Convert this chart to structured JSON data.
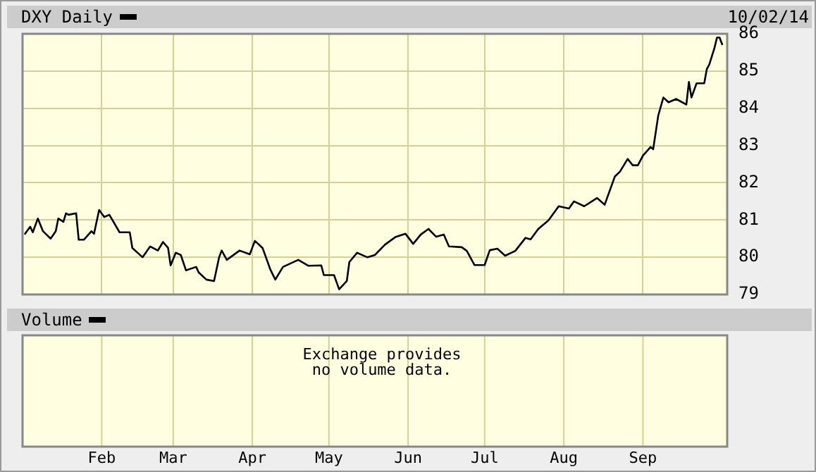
{
  "chart_data": [
    {
      "type": "line",
      "annotations": [
        "10/02/14"
      ],
      "legend": "top left",
      "grid": true,
      "tick_labels": "y",
      "marker": "none",
      "line_style": "solid",
      "xlim": [
        "--01-01",
        "--10-04"
      ],
      "ylim": [
        79,
        86
      ],
      "yticks": [
        79,
        80,
        81,
        82,
        83,
        84,
        85,
        86
      ],
      "xticks": [
        {
          "value": "--02-01",
          "label": "Feb"
        },
        {
          "value": "--03-01",
          "label": "Mar"
        },
        {
          "value": "--04-01",
          "label": "Apr"
        },
        {
          "value": "--05-01",
          "label": "May"
        },
        {
          "value": "--06-01",
          "label": "Jun"
        },
        {
          "value": "--07-01",
          "label": "Jul"
        },
        {
          "value": "--08-01",
          "label": "Aug"
        },
        {
          "value": "--09-01",
          "label": "Sep"
        }
      ],
      "x": [
        "--01-02",
        "--01-04",
        "--01-05",
        "--01-07",
        "--01-09",
        "--01-12",
        "--01-14",
        "--01-15",
        "--01-17",
        "--01-18",
        "--01-19",
        "--01-22",
        "--01-23",
        "--01-25",
        "--01-28",
        "--01-29",
        "--01-31",
        "--02-02",
        "--02-04",
        "--02-08",
        "--02-12",
        "--02-13",
        "--02-17",
        "--02-20",
        "--02-23",
        "--02-25",
        "--02-27",
        "--02-28",
        "--03-02",
        "--03-04",
        "--03-06",
        "--03-10",
        "--03-11",
        "--03-14",
        "--03-17",
        "--03-19",
        "--03-20",
        "--03-22",
        "--03-27",
        "--03-31",
        "--04-02",
        "--04-05",
        "--04-08",
        "--04-10",
        "--04-13",
        "--04-19",
        "--04-23",
        "--04-28",
        "--04-29",
        "--05-03",
        "--05-05",
        "--05-08",
        "--05-09",
        "--05-12",
        "--05-16",
        "--05-19",
        "--05-23",
        "--05-27",
        "--05-31",
        "--06-03",
        "--06-06",
        "--06-09",
        "--06-12",
        "--06-15",
        "--06-17",
        "--06-22",
        "--06-24",
        "--06-27",
        "--07-01",
        "--07-03",
        "--07-06",
        "--07-09",
        "--07-13",
        "--07-17",
        "--07-19",
        "--07-22",
        "--07-26",
        "--07-30",
        "--08-03",
        "--08-05",
        "--08-09",
        "--08-14",
        "--08-17",
        "--08-21",
        "--08-23",
        "--08-26",
        "--08-28",
        "--08-30",
        "--09-01",
        "--09-04",
        "--09-05",
        "--09-07",
        "--09-09",
        "--09-11",
        "--09-14",
        "--09-18",
        "--09-19",
        "--09-20",
        "--09-22",
        "--09-25",
        "--09-26",
        "--09-27",
        "--09-29",
        "--09-30",
        "--10-01",
        "--10-02"
      ],
      "series": [
        {
          "name": "DXY Daily",
          "color": "#000000",
          "values": [
            80.63,
            80.82,
            80.67,
            81.04,
            80.7,
            80.5,
            80.7,
            81.04,
            80.95,
            81.18,
            81.14,
            81.18,
            80.47,
            80.47,
            80.7,
            80.63,
            81.27,
            81.08,
            81.14,
            80.67,
            80.67,
            80.25,
            80.0,
            80.29,
            80.18,
            80.41,
            80.25,
            79.78,
            80.12,
            80.06,
            79.65,
            79.74,
            79.59,
            79.4,
            79.36,
            80.0,
            80.18,
            79.93,
            80.18,
            80.08,
            80.44,
            80.25,
            79.68,
            79.4,
            79.74,
            79.93,
            79.77,
            79.78,
            79.52,
            79.52,
            79.14,
            79.36,
            79.87,
            80.12,
            80.0,
            80.06,
            80.34,
            80.54,
            80.63,
            80.36,
            80.61,
            80.76,
            80.55,
            80.61,
            80.29,
            80.27,
            80.17,
            79.79,
            79.79,
            80.19,
            80.23,
            80.04,
            80.17,
            80.52,
            80.48,
            80.76,
            80.99,
            81.37,
            81.31,
            81.5,
            81.37,
            81.59,
            81.41,
            82.17,
            82.3,
            82.64,
            82.47,
            82.47,
            82.73,
            82.96,
            82.9,
            83.81,
            84.29,
            84.16,
            84.25,
            84.1,
            84.71,
            84.29,
            84.67,
            84.67,
            85.05,
            85.18,
            85.62,
            85.9,
            85.9,
            85.72
          ]
        }
      ]
    },
    {
      "type": "other",
      "title": "Volume",
      "annotations": [
        "Exchange provides no volume data."
      ]
    }
  ]
}
